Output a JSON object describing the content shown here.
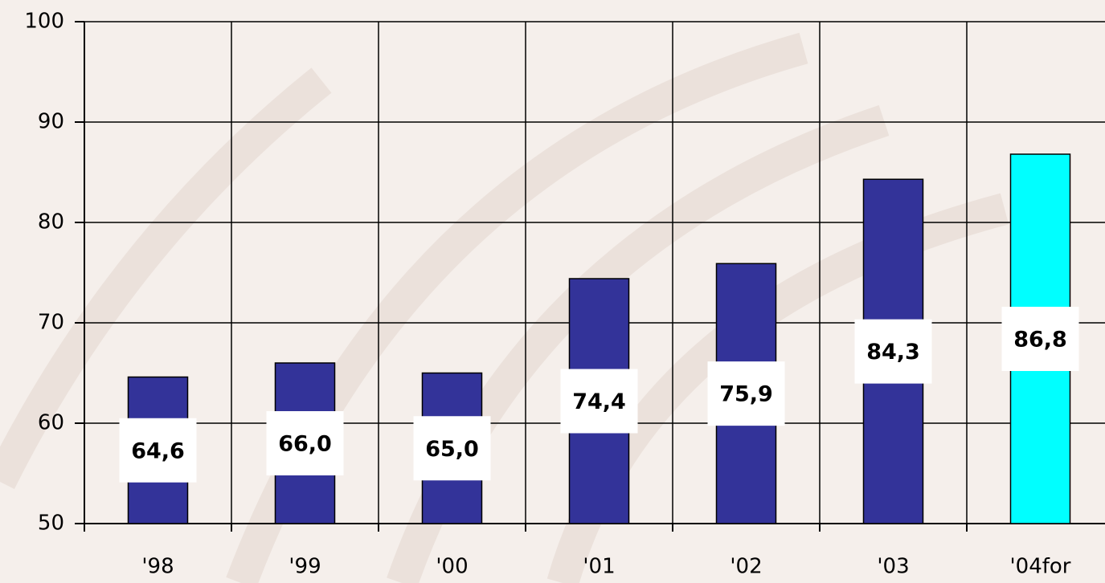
{
  "chart_data": {
    "type": "bar",
    "categories": [
      "'98",
      "'99",
      "'00",
      "'01",
      "'02",
      "'03",
      "'04for"
    ],
    "values": [
      64.6,
      66.0,
      65.0,
      74.4,
      75.9,
      84.3,
      86.8
    ],
    "value_labels": [
      "64,6",
      "66,0",
      "65,0",
      "74,4",
      "75,9",
      "84,3",
      "86,8"
    ],
    "colors": [
      "#333399",
      "#333399",
      "#333399",
      "#333399",
      "#333399",
      "#333399",
      "#00ffff"
    ],
    "ylim": [
      50,
      100
    ],
    "yticks": [
      50,
      60,
      70,
      80,
      90,
      100
    ],
    "grid": true
  }
}
